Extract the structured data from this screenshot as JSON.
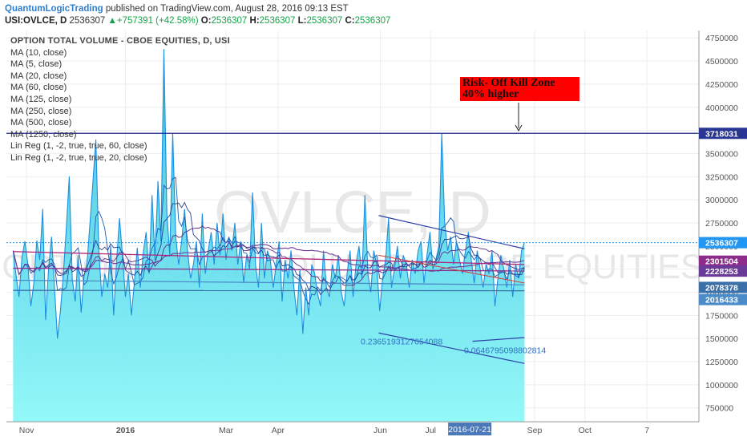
{
  "header": {
    "author": "QuantumLogicTrading",
    "published_text": " published on TradingView.com, August 28, 2016 09:13 EST",
    "symbol_line": "USI:OVLCE, D",
    "last": "2536307",
    "change": "▲+757391 (+42.58%)",
    "o_label": "O:",
    "o_value": "2536307",
    "h_label": "H:",
    "h_value": "2536307",
    "l_label": "L:",
    "l_value": "2536307",
    "c_label": "C:",
    "c_value": "2536307"
  },
  "legend": {
    "title": "OPTION TOTAL VOLUME - CBOE EQUITIES, D, USI",
    "items": [
      "MA (10, close)",
      "MA (5, close)",
      "MA (20, close)",
      "MA (60, close)",
      "MA (125, close)",
      "MA (250, close)",
      "MA (500, close)",
      "MA (1250, close)",
      "Lin Reg (1, -2, true, true, 60, close)",
      "Lin Reg (1, -2, true, true, 20, close)"
    ]
  },
  "watermark": {
    "symbol": "OVLCE, D",
    "description": "OPTION TOTAL VOLUME - CBOE EQUITIES"
  },
  "annotation": {
    "line1": "Risk- Off Kill Zone",
    "line2": "40% higher"
  },
  "colors": {
    "area_fill_top": "#43bfe0",
    "area_fill_bottom": "#7ff5f5",
    "line": "#1b8fe0",
    "hline": "#1f2a8c",
    "annotation_bg": "#ff0000",
    "last_price_bg": "#2196f3"
  },
  "chart_data": {
    "type": "area",
    "y_axis": {
      "ticks": [
        750000,
        1000000,
        1250000,
        1500000,
        1750000,
        2000000,
        2250000,
        2500000,
        2750000,
        3000000,
        3250000,
        3500000,
        3750000,
        4000000,
        4250000,
        4500000,
        4750000
      ],
      "range": [
        600000,
        4830000
      ],
      "position": "right"
    },
    "x_axis": {
      "ticks": [
        "Nov",
        "2016",
        "Mar",
        "Apr",
        "Jun",
        "Jul",
        "2016-07-21",
        "Sep",
        "Oct",
        "7"
      ],
      "highlight_tick": "2016-07-21",
      "range": [
        "2015-10-22",
        "2016-12-08"
      ]
    },
    "series_start": "2015-10-26",
    "series_end": "2016-08-26",
    "volume": [
      2450000,
      2180000,
      1950000,
      2380000,
      2550000,
      2300000,
      1850000,
      2100000,
      2560000,
      2350000,
      2900000,
      1700000,
      2250000,
      2600000,
      2050000,
      1500000,
      1800000,
      2200000,
      2700000,
      3250000,
      2150000,
      1900000,
      2400000,
      1780000,
      2180000,
      2320000,
      2750000,
      3200000,
      3650000,
      2450000,
      1950000,
      2200000,
      2050000,
      2500000,
      1750000,
      2350000,
      2800000,
      2400000,
      1950000,
      2200000,
      1750000,
      2100000,
      2480000,
      2050000,
      2420000,
      2650000,
      2200000,
      3050000,
      2350000,
      3200000,
      2550000,
      4630000,
      2850000,
      2400000,
      3720000,
      2600000,
      2300000,
      2550000,
      2900000,
      2450000,
      2150000,
      2300000,
      2550000,
      2050000,
      2850000,
      2200000,
      2450000,
      2650000,
      2300000,
      2750000,
      2400000,
      2850000,
      2350000,
      2600000,
      2450000,
      2750000,
      2300000,
      2550000,
      2100000,
      2400000,
      2250000,
      3080000,
      2300000,
      2050000,
      2750000,
      2150000,
      2450000,
      2350000,
      2050000,
      2300000,
      2550000,
      1900000,
      2350000,
      2150000,
      2450000,
      2050000,
      1750000,
      2250000,
      1550000,
      2050000,
      1750000,
      2300000,
      2200000,
      1980000,
      1850000,
      2450000,
      2050000,
      1950000,
      2300000,
      2150000,
      2400000,
      2000000,
      1850000,
      2200000,
      2450000,
      1950000,
      2300000,
      2500000,
      2150000,
      3050000,
      2200000,
      2000000,
      2450000,
      2300000,
      1800000,
      2150000,
      2350000,
      2800000,
      2050000,
      2250000,
      2500000,
      2150000,
      2400000,
      2300000,
      2050000,
      2350000,
      2200000,
      2450000,
      2550000,
      2100000,
      2400000,
      2650000,
      2250000,
      2350000,
      2500000,
      3720000,
      2750000,
      2450000,
      2600000,
      2300000,
      2550000,
      2350000,
      2200000,
      2450000,
      2650000,
      2350000,
      2100000,
      2450000,
      2250000,
      2050000,
      2300000,
      2200000,
      2450000,
      1850000,
      2150000,
      2400000,
      2250000,
      2050000,
      2350000,
      1950000,
      2300000,
      2150000,
      2450000,
      2536307
    ],
    "horizontal_line": 3718031,
    "price_labels": [
      {
        "label": "3718031",
        "value": 3718031
      },
      {
        "label": "2536307",
        "value": 2536307
      },
      {
        "label": "2301504",
        "value": 2301504
      },
      {
        "label": "2228253",
        "value": 2228253
      },
      {
        "label": "2078378",
        "value": 2078378
      },
      {
        "label": "2016433",
        "value": 2016433
      }
    ],
    "regression_labels": [
      "0.2365193127054088",
      "0.0646795098802814"
    ]
  }
}
